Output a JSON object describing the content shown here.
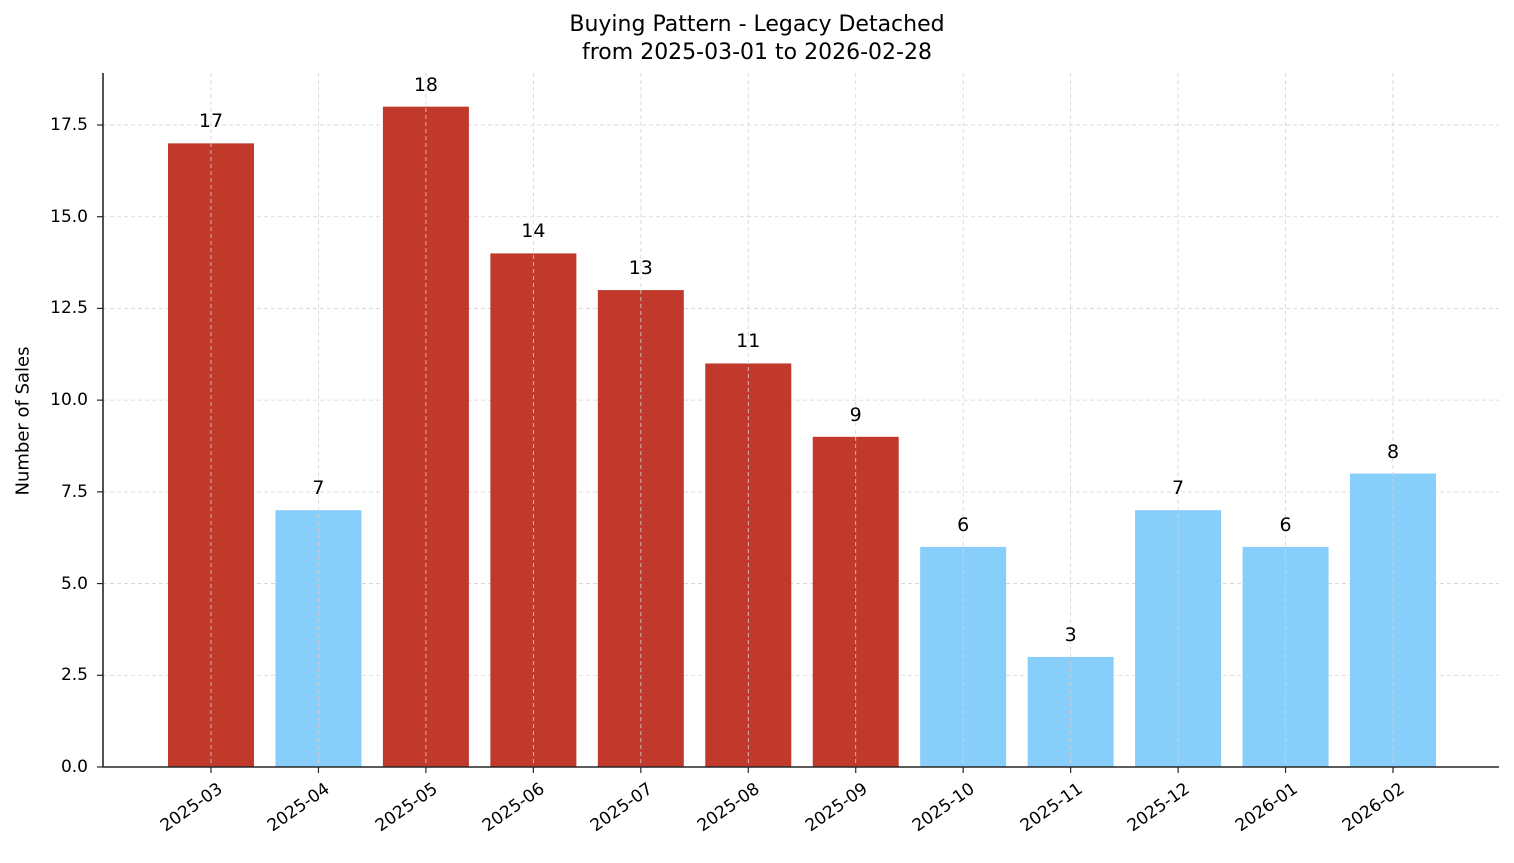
{
  "chart_data": {
    "type": "bar",
    "title": "Buying Pattern - Legacy Detached",
    "subtitle": "from 2025-03-01 to 2026-02-28",
    "xlabel": "",
    "ylabel": "Number of Sales",
    "ylim": [
      0,
      18.9
    ],
    "yticks": [
      "0.0",
      "2.5",
      "5.0",
      "7.5",
      "10.0",
      "12.5",
      "15.0",
      "17.5"
    ],
    "grid": true,
    "legend": null,
    "categories": [
      "2025-03",
      "2025-04",
      "2025-05",
      "2025-06",
      "2025-07",
      "2025-08",
      "2025-09",
      "2025-10",
      "2025-11",
      "2025-12",
      "2026-01",
      "2026-02"
    ],
    "values": [
      17,
      7,
      18,
      14,
      13,
      11,
      9,
      6,
      3,
      7,
      6,
      8
    ],
    "bar_colors": [
      "#c0392b",
      "#87cefa",
      "#c0392b",
      "#c0392b",
      "#c0392b",
      "#c0392b",
      "#c0392b",
      "#87cefa",
      "#87cefa",
      "#87cefa",
      "#87cefa",
      "#87cefa"
    ],
    "data_labels": [
      "17",
      "7",
      "18",
      "14",
      "13",
      "11",
      "9",
      "6",
      "3",
      "7",
      "6",
      "8"
    ]
  },
  "colors": {
    "high": "#c0392b",
    "low": "#87cefa",
    "axis": "#262626",
    "grid": "#d3d3d3"
  }
}
